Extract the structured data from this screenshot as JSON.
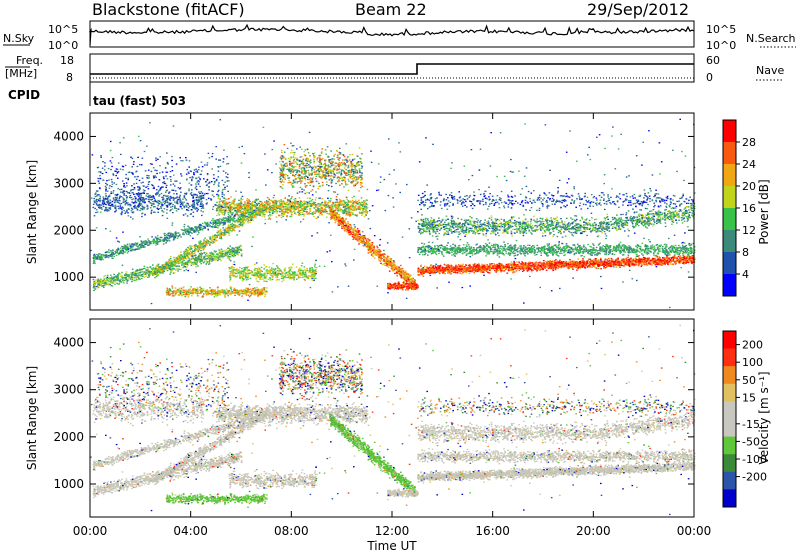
{
  "header": {
    "station": "Blackstone (fitACF)",
    "beam": "Beam 22",
    "date": "29/Sep/2012"
  },
  "top_panels": {
    "nsky_label": "N.Sky",
    "nsky_ticks": [
      "10^5",
      "10^0"
    ],
    "nsearch_label": "N.Search",
    "nsearch_ticks": [
      "10^5",
      "10^0"
    ],
    "freq_label": "Freq.",
    "freq_unit": "[MHz]",
    "freq_ticks": [
      "18",
      "8"
    ],
    "nave_label": "Nave",
    "nave_ticks": [
      "60",
      "0"
    ],
    "cpid_label": "CPID",
    "cpid_value": "tau (fast) 503"
  },
  "chart_data": [
    {
      "type": "heatmap",
      "name": "power",
      "ylabel": "Slant Range [km]",
      "yticks": [
        "1000",
        "2000",
        "3000",
        "4000"
      ],
      "ylim": [
        300,
        4500
      ],
      "xlim": [
        0,
        24
      ],
      "colorbar": {
        "label": "Power [dB]",
        "ticks": [
          "4",
          "8",
          "12",
          "16",
          "20",
          "24",
          "28"
        ],
        "colors": [
          "#0000ff",
          "#1e52ad",
          "#3b8a7a",
          "#39c14a",
          "#c2d41a",
          "#f0a713",
          "#f85a10",
          "#ff0000"
        ]
      }
    },
    {
      "type": "heatmap",
      "name": "velocity",
      "ylabel": "Slant Range [km]",
      "yticks": [
        "1000",
        "2000",
        "3000",
        "4000"
      ],
      "ylim": [
        300,
        4500
      ],
      "xlim": [
        0,
        24
      ],
      "xticks": [
        "00:00",
        "04:00",
        "08:00",
        "12:00",
        "16:00",
        "20:00",
        "00:00"
      ],
      "xlabel": "Time UT",
      "colorbar": {
        "label": "Velocity [m s⁻¹]",
        "ticks": [
          "200",
          "100",
          "50",
          "15",
          "-15",
          "-50",
          "-100",
          "-200"
        ],
        "colors": [
          "#0000cc",
          "#2c55aa",
          "#3a8a3a",
          "#5ec83a",
          "#c8c8c0",
          "#c8c8c0",
          "#e0c060",
          "#f08a20",
          "#ff3010",
          "#ff0000"
        ]
      }
    }
  ]
}
